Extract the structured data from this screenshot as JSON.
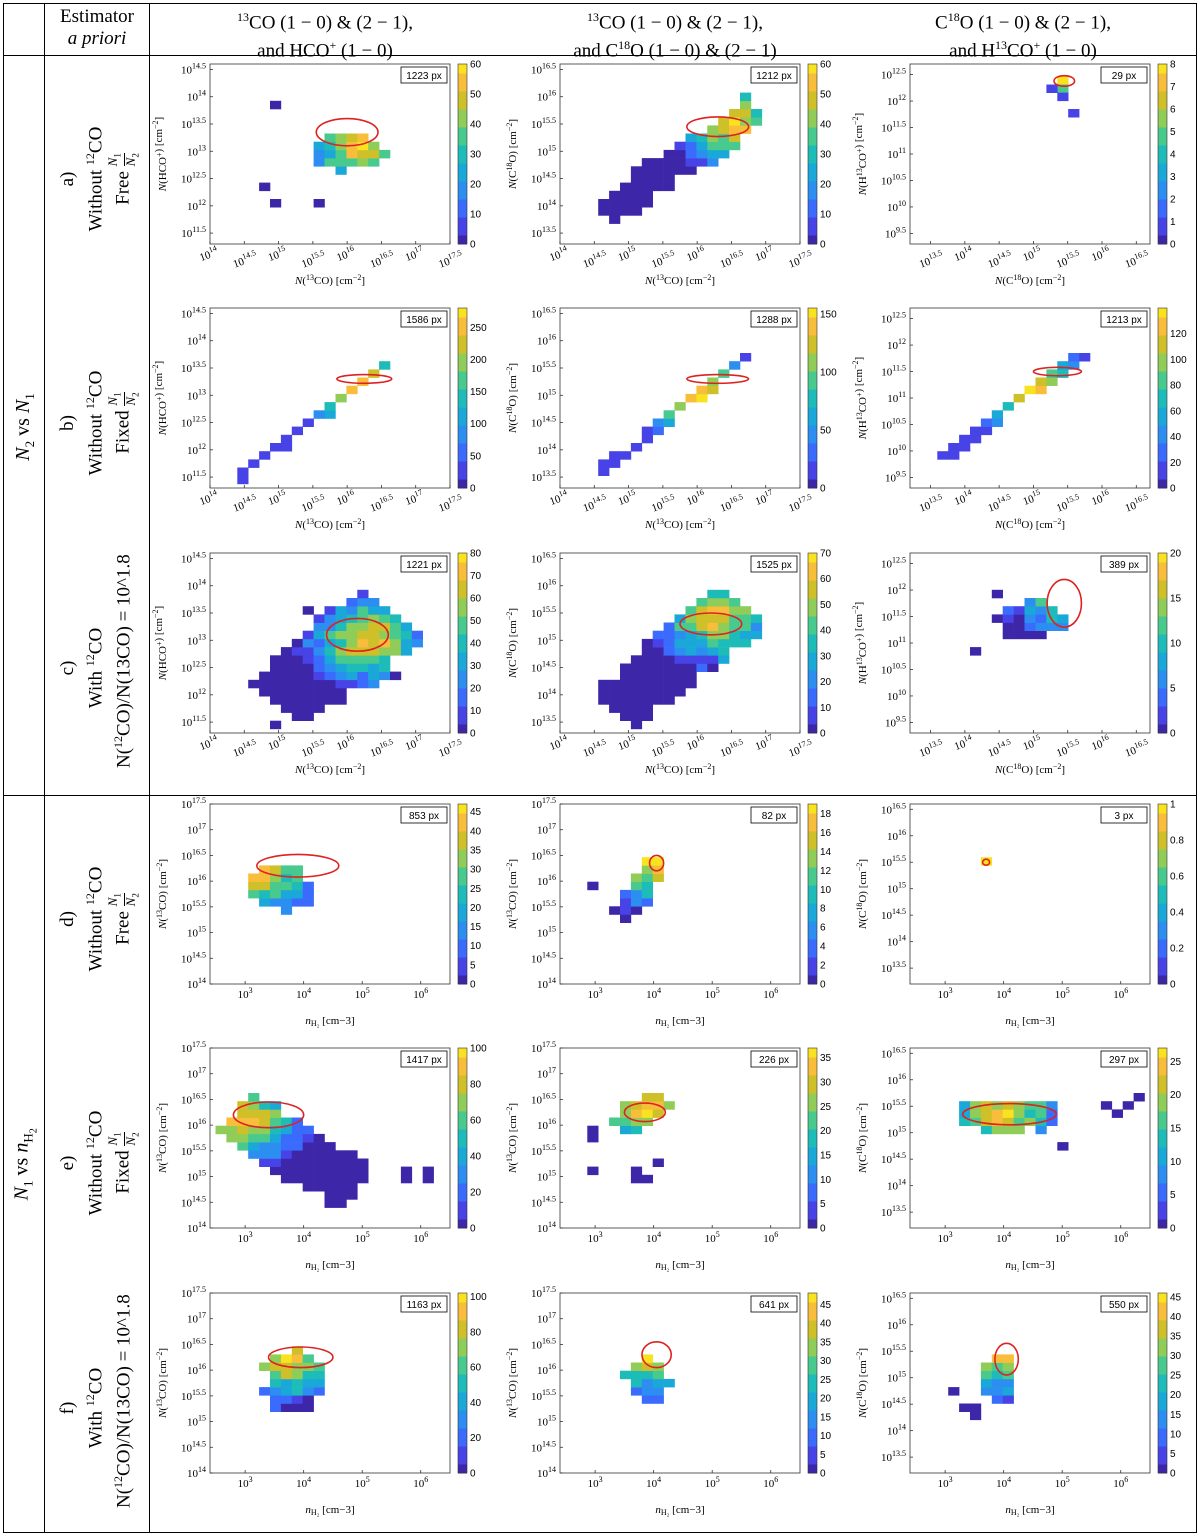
{
  "header": {
    "corner": "",
    "estimator_title": "Estimator",
    "estimator_subtitle": "a priori",
    "col1_line1": "13CO (1 − 0) & (2 − 1),",
    "col1_line2": "and HCO+ (1 − 0)",
    "col2_line1": "13CO (1 − 0) & (2 − 1),",
    "col2_line2": "and C18O (1 − 0) & (2 − 1)",
    "col3_line1": "C18O (1 − 0) & (2 − 1),",
    "col3_line2": "and H13CO+ (1 − 0)"
  },
  "groups": {
    "top": "N2 vs N1",
    "bottom": "N1 vs nH2"
  },
  "rows": [
    {
      "letter": "a)",
      "line1": "Without 12CO",
      "line2": "Free N1/N2"
    },
    {
      "letter": "b)",
      "line1": "Without 12CO",
      "line2": "Fixed N1/N2"
    },
    {
      "letter": "c)",
      "line1": "With 12CO",
      "line2": "N(12CO)/N(13CO) = 10^1.8"
    },
    {
      "letter": "d)",
      "line1": "Without 12CO",
      "line2": "Free N1/N2"
    },
    {
      "letter": "e)",
      "line1": "Without 12CO",
      "line2": "Fixed N1/N2"
    },
    {
      "letter": "f)",
      "line1": "With 12CO",
      "line2": "N(12CO)/N(13CO) = 10^1.8"
    }
  ],
  "colors": {
    "colormap": [
      "#3e26a8",
      "#4743e6",
      "#3a6bfd",
      "#2b8ef0",
      "#19a8d8",
      "#1ebcb9",
      "#48c98d",
      "#8fcc58",
      "#cfc029",
      "#f8bd3a",
      "#f9e21f"
    ],
    "contour": "#dd2222"
  },
  "chart_data": [
    {
      "id": "a1",
      "type": "heatmap",
      "badge": "1223 px",
      "xlabel": "N(13CO) [cm−2]",
      "ylabel": "N(HCO+) [cm−2]",
      "xticks": [
        "10^14",
        "10^14.5",
        "10^15",
        "10^15.5",
        "10^16",
        "10^16.5",
        "10^17",
        "10^17.5"
      ],
      "yticks": [
        "10^11.5",
        "10^12",
        "10^12.5",
        "10^13",
        "10^13.5",
        "10^14",
        "10^14.5"
      ],
      "xlim": [
        14,
        17.5
      ],
      "ylim": [
        11.3,
        14.6
      ],
      "cmax": 60,
      "cticks": [
        "0",
        "10",
        "20",
        "30",
        "40",
        "50",
        "60"
      ],
      "shape": "blob",
      "cx": 16.0,
      "cy": 13.0,
      "sx": 0.55,
      "sy": 0.35,
      "peak": [
        16.2,
        13.1
      ],
      "outliers": [
        [
          15.0,
          13.85
        ],
        [
          15.0,
          12.1
        ],
        [
          15.6,
          12.1
        ],
        [
          14.8,
          12.35
        ]
      ],
      "contour": [
        16.0,
        13.35,
        0.45,
        0.25
      ]
    },
    {
      "id": "a2",
      "type": "heatmap",
      "badge": "1212 px",
      "xlabel": "N(13CO) [cm−2]",
      "ylabel": "N(C18O) [cm−2]",
      "xticks": [
        "10^14",
        "10^14.5",
        "10^15",
        "10^15.5",
        "10^16",
        "10^16.5",
        "10^17",
        "10^17.5"
      ],
      "yticks": [
        "10^13.5",
        "10^14",
        "10^14.5",
        "10^15",
        "10^15.5",
        "10^16",
        "10^16.5"
      ],
      "xlim": [
        14,
        17.5
      ],
      "ylim": [
        13.3,
        16.6
      ],
      "cmax": 60,
      "cticks": [
        "0",
        "10",
        "20",
        "30",
        "40",
        "50",
        "60"
      ],
      "shape": "diag",
      "x0": 14.7,
      "x1": 16.8,
      "y0": 13.9,
      "y1": 15.7,
      "w": 0.35,
      "peak": [
        16.5,
        15.5
      ],
      "contour": [
        16.3,
        15.45,
        0.45,
        0.18
      ]
    },
    {
      "id": "a3",
      "type": "heatmap",
      "badge": "29 px",
      "xlabel": "N(C18O) [cm−2]",
      "ylabel": "N(H13CO+) [cm−2]",
      "xticks": [
        "10^13.5",
        "10^14",
        "10^14.5",
        "10^15",
        "10^15.5",
        "10^16",
        "10^16.5"
      ],
      "yticks": [
        "10^9.5",
        "10^10",
        "10^10.5",
        "10^11",
        "10^11.5",
        "10^12",
        "10^12.5"
      ],
      "xlim": [
        13.2,
        16.7
      ],
      "ylim": [
        9.3,
        12.7
      ],
      "cmax": 8,
      "cticks": [
        "0",
        "1",
        "2",
        "3",
        "4",
        "5",
        "6",
        "7",
        "8"
      ],
      "shape": "tiny",
      "cells": [
        [
          15.4,
          12.4,
          8
        ],
        [
          15.5,
          12.4,
          6
        ],
        [
          15.4,
          12.3,
          5
        ],
        [
          15.3,
          12.3,
          1
        ],
        [
          15.5,
          12.1,
          1
        ],
        [
          15.6,
          11.7,
          1
        ]
      ],
      "contour": [
        15.45,
        12.38,
        0.15,
        0.1
      ]
    },
    {
      "id": "b1",
      "type": "heatmap",
      "badge": "1586 px",
      "xlabel": "N(13CO) [cm−2]",
      "ylabel": "N(HCO+) [cm−2]",
      "xticks": [
        "10^14",
        "10^14.5",
        "10^15",
        "10^15.5",
        "10^16",
        "10^16.5",
        "10^17",
        "10^17.5"
      ],
      "yticks": [
        "10^11.5",
        "10^12",
        "10^12.5",
        "10^13",
        "10^13.5",
        "10^14",
        "10^14.5"
      ],
      "xlim": [
        14,
        17.5
      ],
      "ylim": [
        11.3,
        14.6
      ],
      "cmax": 280,
      "cticks": [
        "0",
        "50",
        "100",
        "150",
        "200",
        "250"
      ],
      "shape": "line",
      "x0": 14.4,
      "x1": 16.6,
      "y0": 11.5,
      "y1": 13.6,
      "peak": [
        16.1,
        13.2
      ],
      "contour": [
        16.25,
        13.3,
        0.4,
        0.08
      ]
    },
    {
      "id": "b2",
      "type": "heatmap",
      "badge": "1288 px",
      "xlabel": "N(13CO) [cm−2]",
      "ylabel": "N(C18O) [cm−2]",
      "xticks": [
        "10^14",
        "10^14.5",
        "10^15",
        "10^15.5",
        "10^16",
        "10^16.5",
        "10^17",
        "10^17.5"
      ],
      "yticks": [
        "10^13.5",
        "10^14",
        "10^14.5",
        "10^15",
        "10^15.5",
        "10^16",
        "10^16.5"
      ],
      "xlim": [
        14,
        17.5
      ],
      "ylim": [
        13.3,
        16.6
      ],
      "cmax": 155,
      "cticks": [
        "0",
        "50",
        "100",
        "150"
      ],
      "shape": "line",
      "x0": 14.6,
      "x1": 16.7,
      "y0": 13.6,
      "y1": 15.7,
      "peak": [
        16.0,
        15.0
      ],
      "contour": [
        16.3,
        15.3,
        0.45,
        0.08
      ]
    },
    {
      "id": "b3",
      "type": "heatmap",
      "badge": "1213 px",
      "xlabel": "N(C18O) [cm−2]",
      "ylabel": "N(H13CO+) [cm−2]",
      "xticks": [
        "10^13.5",
        "10^14",
        "10^14.5",
        "10^15",
        "10^15.5",
        "10^16",
        "10^16.5"
      ],
      "yticks": [
        "10^9.5",
        "10^10",
        "10^10.5",
        "10^11",
        "10^11.5",
        "10^12",
        "10^12.5"
      ],
      "xlim": [
        13.2,
        16.7
      ],
      "ylim": [
        9.3,
        12.7
      ],
      "cmax": 140,
      "cticks": [
        "0",
        "20",
        "40",
        "60",
        "80",
        "100",
        "120"
      ],
      "shape": "line",
      "x0": 13.7,
      "x1": 15.7,
      "y0": 9.9,
      "y1": 11.8,
      "peak": [
        15.0,
        11.1
      ],
      "contour": [
        15.35,
        11.5,
        0.35,
        0.08
      ]
    },
    {
      "id": "c1",
      "type": "heatmap",
      "badge": "1221 px",
      "xlabel": "N(13CO) [cm−2]",
      "ylabel": "N(HCO+) [cm−2]",
      "xticks": [
        "10^14",
        "10^14.5",
        "10^15",
        "10^15.5",
        "10^16",
        "10^16.5",
        "10^17",
        "10^17.5"
      ],
      "yticks": [
        "10^11.5",
        "10^12",
        "10^12.5",
        "10^13",
        "10^13.5",
        "10^14",
        "10^14.5"
      ],
      "xlim": [
        14,
        17.5
      ],
      "ylim": [
        11.3,
        14.6
      ],
      "cmax": 80,
      "cticks": [
        "0",
        "10",
        "20",
        "30",
        "40",
        "50",
        "60",
        "70",
        "80"
      ],
      "shape": "diagblob",
      "x0": 15.0,
      "x1": 16.6,
      "y0": 11.9,
      "y1": 13.4,
      "w": 0.7,
      "peak": [
        16.3,
        13.0
      ],
      "outliers": [
        [
          15.0,
          11.5
        ],
        [
          15.0,
          11.4
        ],
        [
          16.7,
          12.3
        ],
        [
          15.5,
          13.5
        ]
      ],
      "contour": [
        16.15,
        13.1,
        0.45,
        0.3
      ]
    },
    {
      "id": "c2",
      "type": "heatmap",
      "badge": "1525 px",
      "xlabel": "N(13CO) [cm−2]",
      "ylabel": "N(C18O) [cm−2]",
      "xticks": [
        "10^14",
        "10^14.5",
        "10^15",
        "10^15.5",
        "10^16",
        "10^16.5",
        "10^17",
        "10^17.5"
      ],
      "yticks": [
        "10^13.5",
        "10^14",
        "10^14.5",
        "10^15",
        "10^15.5",
        "10^16",
        "10^16.5"
      ],
      "xlim": [
        14,
        17.5
      ],
      "ylim": [
        13.3,
        16.6
      ],
      "cmax": 70,
      "cticks": [
        "0",
        "10",
        "20",
        "30",
        "40",
        "50",
        "60",
        "70"
      ],
      "shape": "diagblob",
      "x0": 14.9,
      "x1": 16.6,
      "y0": 13.8,
      "y1": 15.6,
      "w": 0.55,
      "peak": [
        16.3,
        15.4
      ],
      "contour": [
        16.2,
        15.3,
        0.45,
        0.2
      ]
    },
    {
      "id": "c3",
      "type": "heatmap",
      "badge": "389 px",
      "xlabel": "N(C18O) [cm−2]",
      "ylabel": "N(H13CO+) [cm−2]",
      "xticks": [
        "10^13.5",
        "10^14",
        "10^14.5",
        "10^15",
        "10^15.5",
        "10^16",
        "10^16.5"
      ],
      "yticks": [
        "10^9.5",
        "10^10",
        "10^10.5",
        "10^11",
        "10^11.5",
        "10^12",
        "10^12.5"
      ],
      "xlim": [
        13.2,
        16.7
      ],
      "ylim": [
        9.3,
        12.7
      ],
      "cmax": 20,
      "cticks": [
        "0",
        "5",
        "10",
        "15",
        "20"
      ],
      "shape": "blob",
      "cx": 15.0,
      "cy": 11.4,
      "sx": 0.5,
      "sy": 0.35,
      "peak": [
        15.55,
        12.0
      ],
      "outliers": [
        [
          14.4,
          11.9
        ],
        [
          14.1,
          10.8
        ]
      ],
      "contour": [
        15.45,
        11.75,
        0.25,
        0.45
      ]
    },
    {
      "id": "d1",
      "type": "heatmap",
      "badge": "853 px",
      "xlabel": "nH2 [cm−3]",
      "ylabel": "N(13CO) [cm−2]",
      "xticks": [
        "10^3",
        "10^4",
        "10^5",
        "10^6"
      ],
      "yticks": [
        "10^14",
        "10^14.5",
        "10^15",
        "10^15.5",
        "10^16",
        "10^16.5",
        "10^17",
        "10^17.5"
      ],
      "xlim": [
        2.4,
        6.5
      ],
      "ylim": [
        14,
        17.5
      ],
      "cmax": 47,
      "cticks": [
        "0",
        "5",
        "10",
        "15",
        "20",
        "25",
        "30",
        "35",
        "40",
        "45"
      ],
      "shape": "blob",
      "cx": 3.6,
      "cy": 15.9,
      "sx": 0.6,
      "sy": 0.45,
      "peak": [
        3.3,
        16.2
      ],
      "contour": [
        3.9,
        16.3,
        0.7,
        0.22
      ]
    },
    {
      "id": "d2",
      "type": "heatmap",
      "badge": "82 px",
      "xlabel": "nH2 [cm−3]",
      "ylabel": "N(13CO) [cm−2]",
      "xticks": [
        "10^3",
        "10^4",
        "10^5",
        "10^6"
      ],
      "yticks": [
        "10^14",
        "10^14.5",
        "10^15",
        "10^15.5",
        "10^16",
        "10^16.5",
        "10^17",
        "10^17.5"
      ],
      "xlim": [
        2.4,
        6.5
      ],
      "ylim": [
        14,
        17.5
      ],
      "cmax": 19,
      "cticks": [
        "0",
        "2",
        "4",
        "6",
        "8",
        "10",
        "12",
        "14",
        "16",
        "18"
      ],
      "shape": "diagblob",
      "x0": 3.5,
      "x1": 4.1,
      "y0": 15.3,
      "y1": 16.4,
      "w": 0.25,
      "peak": [
        4.05,
        16.35
      ],
      "outliers": [
        [
          2.9,
          15.9
        ]
      ],
      "contour": [
        4.05,
        16.35,
        0.12,
        0.15
      ]
    },
    {
      "id": "d3",
      "type": "heatmap",
      "badge": "3 px",
      "xlabel": "nH2 [cm−3]",
      "ylabel": "N(C18O) [cm−2]",
      "xticks": [
        "10^3",
        "10^4",
        "10^5",
        "10^6"
      ],
      "yticks": [
        "10^13.5",
        "10^14",
        "10^14.5",
        "10^15",
        "10^15.5",
        "10^16",
        "10^16.5"
      ],
      "xlim": [
        2.4,
        6.5
      ],
      "ylim": [
        13.2,
        16.6
      ],
      "cmax": 1,
      "cticks": [
        "0",
        "0.2",
        "0.4",
        "0.6",
        "0.8",
        "1"
      ],
      "shape": "tiny",
      "cells": [
        [
          3.7,
          15.5,
          1
        ]
      ],
      "contour": [
        3.7,
        15.5,
        0.06,
        0.05
      ]
    },
    {
      "id": "e1",
      "type": "heatmap",
      "badge": "1417 px",
      "xlabel": "nH2 [cm−3]",
      "ylabel": "N(13CO) [cm−2]",
      "xticks": [
        "10^3",
        "10^4",
        "10^5",
        "10^6"
      ],
      "yticks": [
        "10^14",
        "10^14.5",
        "10^15",
        "10^15.5",
        "10^16",
        "10^16.5",
        "10^17",
        "10^17.5"
      ],
      "xlim": [
        2.4,
        6.5
      ],
      "ylim": [
        14,
        17.5
      ],
      "cmax": 100,
      "cticks": [
        "0",
        "20",
        "40",
        "60",
        "80",
        "100"
      ],
      "shape": "antidiag",
      "x0": 2.9,
      "x1": 4.8,
      "y0": 16.2,
      "y1": 14.8,
      "w": 0.65,
      "peak": [
        3.0,
        16.1
      ],
      "outliers": [
        [
          5.8,
          15.1
        ],
        [
          5.8,
          15.0
        ],
        [
          6.1,
          15.1
        ],
        [
          6.1,
          15.0
        ]
      ],
      "contour": [
        3.4,
        16.2,
        0.6,
        0.25
      ]
    },
    {
      "id": "e2",
      "type": "heatmap",
      "badge": "226 px",
      "xlabel": "nH2 [cm−3]",
      "ylabel": "N(13CO) [cm−2]",
      "xticks": [
        "10^3",
        "10^4",
        "10^5",
        "10^6"
      ],
      "yticks": [
        "10^14",
        "10^14.5",
        "10^15",
        "10^15.5",
        "10^16",
        "10^16.5",
        "10^17",
        "10^17.5"
      ],
      "xlim": [
        2.4,
        6.5
      ],
      "ylim": [
        14,
        17.5
      ],
      "cmax": 37,
      "cticks": [
        "0",
        "5",
        "10",
        "15",
        "20",
        "25",
        "30",
        "35"
      ],
      "shape": "diagblob",
      "x0": 3.4,
      "x1": 4.2,
      "y0": 16.0,
      "y1": 16.5,
      "w": 0.28,
      "peak": [
        3.9,
        16.3
      ],
      "outliers": [
        [
          2.9,
          15.9
        ],
        [
          3.0,
          15.7
        ],
        [
          3.0,
          15.1
        ],
        [
          3.7,
          15.1
        ],
        [
          3.7,
          15.0
        ],
        [
          3.9,
          14.9
        ],
        [
          4.1,
          15.3
        ]
      ],
      "contour": [
        3.85,
        16.25,
        0.35,
        0.18
      ]
    },
    {
      "id": "e3",
      "type": "heatmap",
      "badge": "297 px",
      "xlabel": "nH2 [cm−3]",
      "ylabel": "N(C18O) [cm−2]",
      "xticks": [
        "10^3",
        "10^4",
        "10^5",
        "10^6"
      ],
      "yticks": [
        "10^13.5",
        "10^14",
        "10^14.5",
        "10^15",
        "10^15.5",
        "10^16",
        "10^16.5"
      ],
      "xlim": [
        2.4,
        6.5
      ],
      "ylim": [
        13.2,
        16.6
      ],
      "cmax": 27,
      "cticks": [
        "0",
        "5",
        "10",
        "15",
        "20",
        "25"
      ],
      "shape": "band",
      "x0": 3.3,
      "x1": 4.9,
      "y": 15.35,
      "h": 0.45,
      "peak": [
        4.0,
        15.4
      ],
      "outliers": [
        [
          5.1,
          14.7
        ],
        [
          5.8,
          15.5
        ],
        [
          5.9,
          15.3
        ],
        [
          6.1,
          15.5
        ],
        [
          6.25,
          15.6
        ]
      ],
      "contour": [
        4.1,
        15.35,
        0.8,
        0.2
      ]
    },
    {
      "id": "f1",
      "type": "heatmap",
      "badge": "1163 px",
      "xlabel": "nH2 [cm−3]",
      "ylabel": "N(13CO) [cm−2]",
      "xticks": [
        "10^3",
        "10^4",
        "10^5",
        "10^6"
      ],
      "yticks": [
        "10^14",
        "10^14.5",
        "10^15",
        "10^15.5",
        "10^16",
        "10^16.5",
        "10^17",
        "10^17.5"
      ],
      "xlim": [
        2.4,
        6.5
      ],
      "ylim": [
        14,
        17.5
      ],
      "cmax": 102,
      "cticks": [
        "0",
        "20",
        "40",
        "60",
        "80",
        "100"
      ],
      "shape": "blob",
      "cx": 3.8,
      "cy": 15.8,
      "sx": 0.5,
      "sy": 0.55,
      "peak": [
        3.7,
        16.25
      ],
      "contour": [
        3.95,
        16.25,
        0.55,
        0.2
      ]
    },
    {
      "id": "f2",
      "type": "heatmap",
      "badge": "641 px",
      "xlabel": "nH2 [cm−3]",
      "ylabel": "N(13CO) [cm−2]",
      "xticks": [
        "10^3",
        "10^4",
        "10^5",
        "10^6"
      ],
      "yticks": [
        "10^14",
        "10^14.5",
        "10^15",
        "10^15.5",
        "10^16",
        "10^16.5",
        "10^17",
        "10^17.5"
      ],
      "xlim": [
        2.4,
        6.5
      ],
      "ylim": [
        14,
        17.5
      ],
      "cmax": 48,
      "cticks": [
        "0",
        "5",
        "10",
        "15",
        "20",
        "25",
        "30",
        "35",
        "40",
        "45"
      ],
      "shape": "blob",
      "cx": 3.9,
      "cy": 15.8,
      "sx": 0.35,
      "sy": 0.5,
      "peak": [
        4.0,
        16.35
      ],
      "contour": [
        4.05,
        16.3,
        0.25,
        0.25
      ]
    },
    {
      "id": "f3",
      "type": "heatmap",
      "badge": "550 px",
      "xlabel": "nH2 [cm−3]",
      "ylabel": "N(C18O) [cm−2]",
      "xticks": [
        "10^3",
        "10^4",
        "10^5",
        "10^6"
      ],
      "yticks": [
        "10^13.5",
        "10^14",
        "10^14.5",
        "10^15",
        "10^15.5",
        "10^16",
        "10^16.5"
      ],
      "xlim": [
        2.4,
        6.5
      ],
      "ylim": [
        13.2,
        16.6
      ],
      "cmax": 46,
      "cticks": [
        "0",
        "5",
        "10",
        "15",
        "20",
        "25",
        "30",
        "35",
        "40",
        "45"
      ],
      "shape": "blob",
      "cx": 3.95,
      "cy": 15.0,
      "sx": 0.3,
      "sy": 0.5,
      "peak": [
        4.05,
        15.5
      ],
      "outliers": [
        [
          3.2,
          14.7
        ],
        [
          3.4,
          14.5
        ],
        [
          3.6,
          14.4
        ],
        [
          3.6,
          14.3
        ]
      ],
      "contour": [
        4.05,
        15.35,
        0.2,
        0.3
      ]
    }
  ]
}
